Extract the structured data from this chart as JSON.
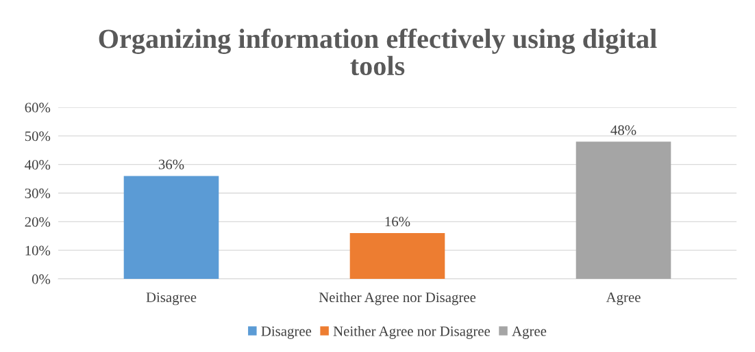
{
  "chart_data": {
    "type": "bar",
    "title": "Organizing information effectively using digital\ntools",
    "categories": [
      "Disagree",
      "Neither Agree nor Disagree",
      "Agree"
    ],
    "stacked": true,
    "series": [
      {
        "name": "Disagree",
        "color": "#5b9bd5",
        "values": [
          36,
          null,
          null
        ],
        "value_labels": [
          "36%",
          null,
          null
        ]
      },
      {
        "name": "Neither Agree nor Disagree",
        "color": "#ed7d31",
        "values": [
          null,
          16,
          null
        ],
        "value_labels": [
          null,
          "16%",
          null
        ]
      },
      {
        "name": "Agree",
        "color": "#a5a5a5",
        "values": [
          null,
          null,
          48
        ],
        "value_labels": [
          null,
          null,
          "48%"
        ]
      }
    ],
    "ylim": [
      0,
      60
    ],
    "yticks": [
      {
        "value": 0,
        "label": "0%"
      },
      {
        "value": 10,
        "label": "10%"
      },
      {
        "value": 20,
        "label": "20%"
      },
      {
        "value": 30,
        "label": "30%"
      },
      {
        "value": 40,
        "label": "40%"
      },
      {
        "value": 50,
        "label": "50%"
      },
      {
        "value": 60,
        "label": "60%"
      }
    ],
    "grid": "y",
    "legend": "bottom"
  }
}
